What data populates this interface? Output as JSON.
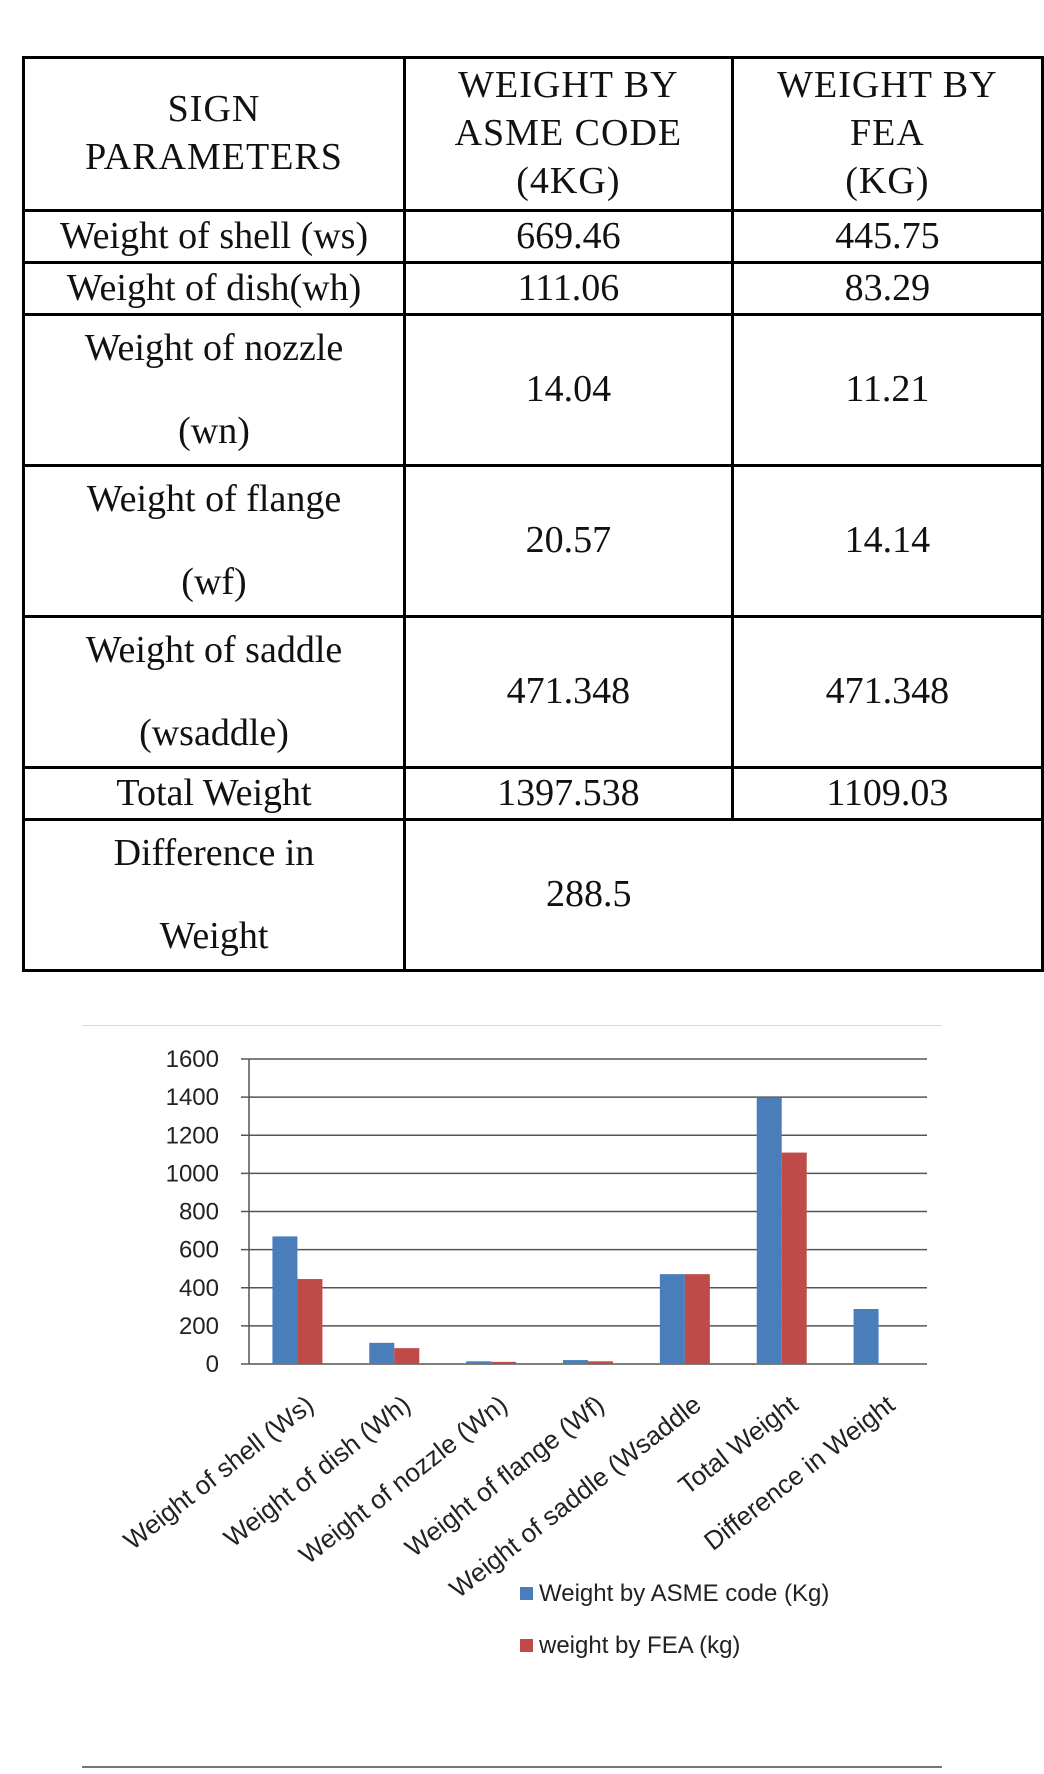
{
  "table": {
    "header": [
      [
        "SIGN",
        "PARAMETERS",
        ""
      ],
      [
        "WEIGHT  BY",
        "ASME CODE",
        "(4KG)"
      ],
      [
        "WEIGHT  BY",
        "FEA",
        "(KG)"
      ]
    ],
    "rows": [
      {
        "param_line1": "Weight of shell (ws)",
        "param_line2": "",
        "asme": "669.46",
        "fea": "445.75"
      },
      {
        "param_line1": "Weight of dish(wh)",
        "param_line2": "",
        "asme": "111.06",
        "fea": "83.29"
      },
      {
        "param_line1": "Weight of nozzle",
        "param_line2": "(wn)",
        "asme": "14.04",
        "fea": "11.21"
      },
      {
        "param_line1": "Weight of flange",
        "param_line2": "(wf)",
        "asme": "20.57",
        "fea": "14.14"
      },
      {
        "param_line1": "Weight of saddle",
        "param_line2": "(wsaddle)",
        "asme": "471.348",
        "fea": "471.348"
      },
      {
        "param_line1": "Total Weight",
        "param_line2": "",
        "asme": "1397.538",
        "fea": "1109.03"
      }
    ],
    "difference": {
      "param_line1": "Difference in",
      "param_line2": "Weight",
      "value": "288.5"
    }
  },
  "chart_data": {
    "type": "bar",
    "categories": [
      "Weight of shell (Ws)",
      "Weight of  dish (Wh)",
      "Weight of nozzle (Wn)",
      "Weight of flange (Wf)",
      "Weight of saddle (Wsaddle",
      "Total Weight",
      "Difference in Weight"
    ],
    "series": [
      {
        "name": "Weight  by ASME code (Kg)",
        "color": "#4a7ebb",
        "values": [
          669.46,
          111.06,
          14.04,
          20.57,
          471.348,
          1397.538,
          288.5
        ]
      },
      {
        "name": "weight  by FEA (kg)",
        "color": "#be4b48",
        "values": [
          445.75,
          83.29,
          11.21,
          14.14,
          471.348,
          1109.03,
          null
        ]
      }
    ],
    "ylim": [
      0,
      1600
    ],
    "yticks": [
      "0",
      "200",
      "400",
      "600",
      "800",
      "1000",
      "1200",
      "1400",
      "1600"
    ],
    "grid": true,
    "legend": "bottom-right"
  }
}
